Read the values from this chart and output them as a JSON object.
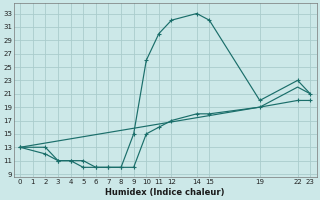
{
  "xlabel": "Humidex (Indice chaleur)",
  "background_color": "#cce8e8",
  "grid_color": "#aacccc",
  "line_color": "#1a6e6a",
  "xlim": [
    -0.5,
    23.5
  ],
  "ylim": [
    8.5,
    34.5
  ],
  "xticks": [
    0,
    1,
    2,
    3,
    4,
    5,
    6,
    7,
    8,
    9,
    10,
    11,
    12,
    14,
    15,
    19,
    22,
    23
  ],
  "yticks": [
    9,
    11,
    13,
    15,
    17,
    19,
    21,
    23,
    25,
    27,
    29,
    31,
    33
  ],
  "curve1_x": [
    0,
    2,
    3,
    4,
    5,
    6,
    7,
    8,
    9,
    10,
    11,
    12,
    14,
    15,
    19,
    22,
    23
  ],
  "curve1_y": [
    13,
    13,
    11,
    11,
    10,
    10,
    10,
    10,
    15,
    26,
    30,
    32,
    33,
    32,
    20,
    23,
    21
  ],
  "curve2_x": [
    0,
    2,
    3,
    4,
    5,
    6,
    7,
    8,
    9,
    10,
    11,
    12,
    14,
    15,
    19,
    22,
    23
  ],
  "curve2_y": [
    13,
    12,
    11,
    11,
    11,
    10,
    10,
    10,
    10,
    15,
    16,
    17,
    18,
    18,
    19,
    20,
    20
  ],
  "curve3_x": [
    0,
    19,
    22,
    23
  ],
  "curve3_y": [
    13,
    19,
    22,
    21
  ],
  "figsize": [
    3.2,
    2.0
  ],
  "dpi": 100
}
